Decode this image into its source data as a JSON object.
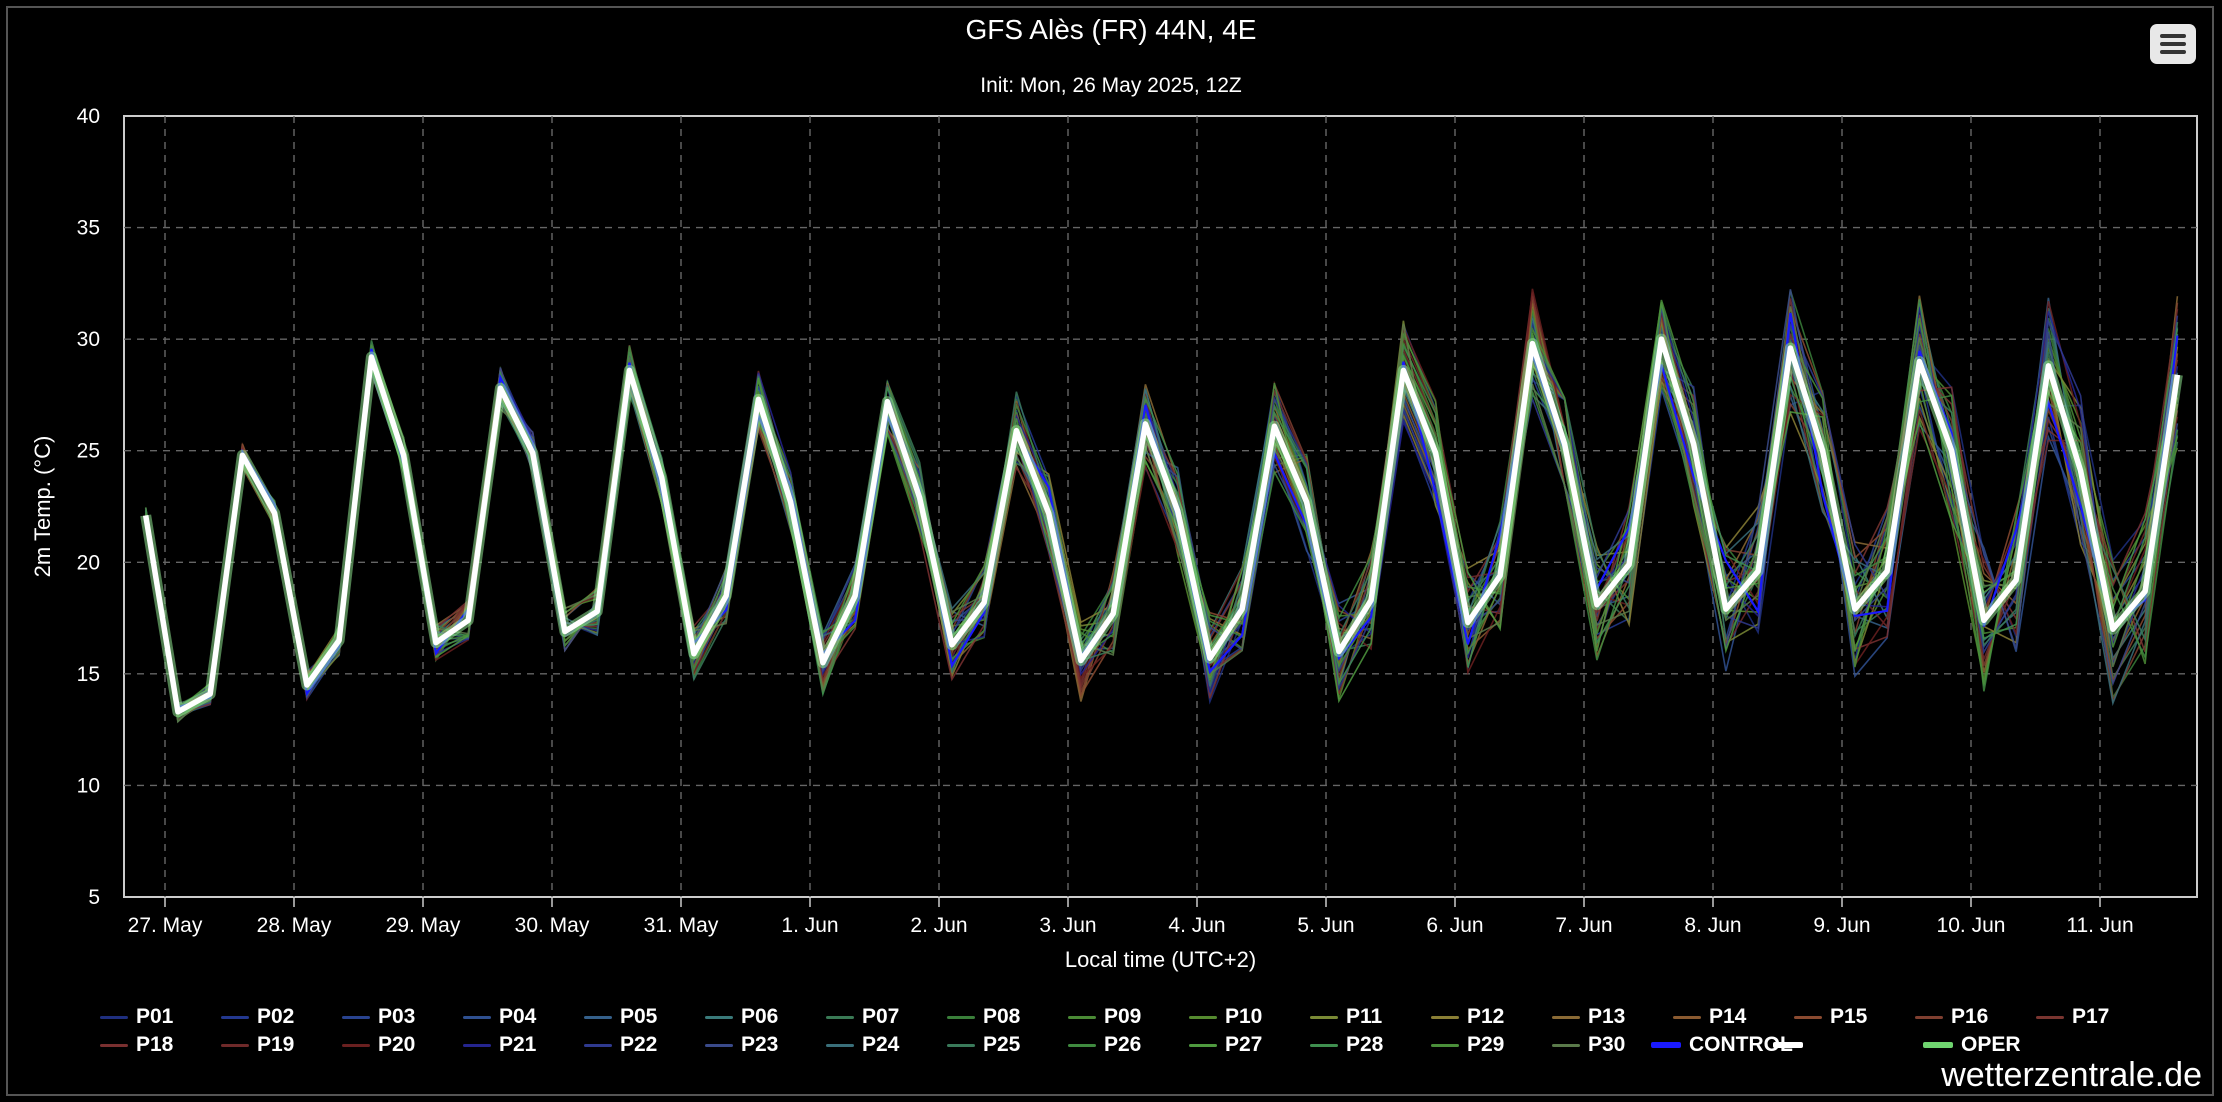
{
  "title": "GFS Alès (FR) 44N, 4E",
  "subtitle": "Init: Mon, 26 May 2025, 12Z",
  "footer": "wetterzentrale.de",
  "menu": {
    "icon": "hamburger-menu-icon"
  },
  "colors": {
    "background": "#000000",
    "grid": "#666666",
    "oper": "#ffffff",
    "control": "#1a1aff",
    "oper_glow": "#8fe38f"
  },
  "chart_data": {
    "type": "line",
    "xlabel": "Local time (UTC+2)",
    "ylabel": "2m Temp. (°C)",
    "ylim": [
      5,
      40
    ],
    "yticks": [
      5,
      10,
      15,
      20,
      25,
      30,
      35,
      40
    ],
    "x_tick_labels": [
      "27. May",
      "28. May",
      "29. May",
      "30. May",
      "31. May",
      "1. Jun",
      "2. Jun",
      "3. Jun",
      "4. Jun",
      "5. Jun",
      "6. Jun",
      "7. Jun",
      "8. Jun",
      "9. Jun",
      "10. Jun",
      "11. Jun"
    ],
    "x_unit": "days from 27. May 00:00 local",
    "x_start": -0.15,
    "x_end": 15.7,
    "step": 0.25,
    "grid": true,
    "legend_position": "bottom",
    "oper": {
      "name": "OPER",
      "values": [
        22.1,
        13.3,
        14.1,
        24.8,
        22.2,
        14.5,
        16.5,
        29.2,
        24.8,
        16.4,
        17.4,
        27.8,
        24.9,
        16.9,
        17.8,
        28.6,
        23.8,
        15.9,
        18.5,
        27.3,
        22.7,
        15.5,
        18.5,
        27.2,
        22.9,
        16.3,
        18.2,
        25.9,
        22.2,
        15.6,
        17.7,
        26.2,
        22.3,
        15.7,
        17.9,
        26.1,
        22.7,
        16.0,
        18.3,
        28.6,
        24.9,
        17.3,
        19.4,
        29.8,
        25.3,
        18.1,
        19.9,
        30.0,
        25.3,
        17.9,
        19.6,
        29.6,
        25.0,
        17.9,
        19.6,
        29.0,
        25.0,
        17.4,
        19.2,
        28.8,
        24.1,
        17.0,
        18.7,
        28.4
      ]
    },
    "series": [
      {
        "name": "P01",
        "color": "#1f2f7f"
      },
      {
        "name": "P02",
        "color": "#23388f"
      },
      {
        "name": "P03",
        "color": "#29438f"
      },
      {
        "name": "P04",
        "color": "#2f5090"
      },
      {
        "name": "P05",
        "color": "#35608a"
      },
      {
        "name": "P06",
        "color": "#3a7a7a"
      },
      {
        "name": "P07",
        "color": "#3a7a55"
      },
      {
        "name": "P08",
        "color": "#3a7f3a"
      },
      {
        "name": "P09",
        "color": "#4a8a35"
      },
      {
        "name": "P10",
        "color": "#558a2f"
      },
      {
        "name": "P11",
        "color": "#7a8a35"
      },
      {
        "name": "P12",
        "color": "#8a7f35"
      },
      {
        "name": "P13",
        "color": "#8a6a35"
      },
      {
        "name": "P14",
        "color": "#8a5a30"
      },
      {
        "name": "P15",
        "color": "#8a4a30"
      },
      {
        "name": "P16",
        "color": "#7f3f30"
      },
      {
        "name": "P17",
        "color": "#7a3530"
      },
      {
        "name": "P18",
        "color": "#7a3030"
      },
      {
        "name": "P19",
        "color": "#6f2a2a"
      },
      {
        "name": "P20",
        "color": "#6a2020"
      },
      {
        "name": "P21",
        "color": "#25258f"
      },
      {
        "name": "P22",
        "color": "#2f3a8f"
      },
      {
        "name": "P23",
        "color": "#3a4a8a"
      },
      {
        "name": "P24",
        "color": "#3a6f7a"
      },
      {
        "name": "P25",
        "color": "#3a7a5a"
      },
      {
        "name": "P26",
        "color": "#3f8a3f"
      },
      {
        "name": "P27",
        "color": "#4f9a3f"
      },
      {
        "name": "P28",
        "color": "#3f8f4f"
      },
      {
        "name": "P29",
        "color": "#4a8f3a"
      },
      {
        "name": "P30",
        "color": "#5a7a4a"
      },
      {
        "name": "CONTROL",
        "color": "#1a1aff"
      },
      {
        "name": "",
        "color": "#ffffff"
      },
      {
        "name": "OPER",
        "color": "#6fd46f"
      }
    ]
  }
}
